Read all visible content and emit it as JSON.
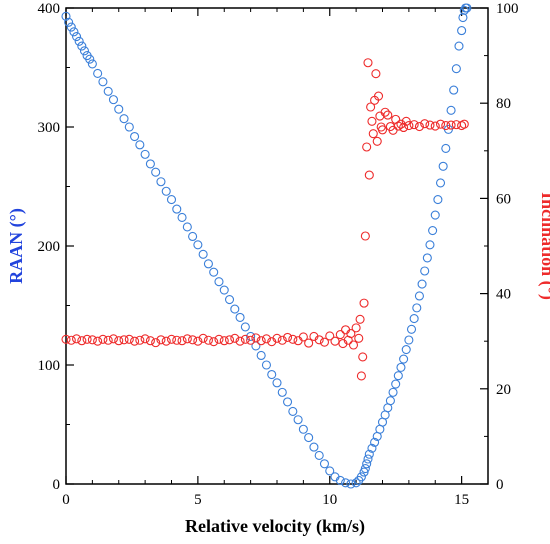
{
  "chart_data": {
    "type": "scatter",
    "title": "",
    "xlabel": "Relative velocity (km/s)",
    "ylabel_left": "RAAN (°)",
    "ylabel_right": "Inclination (°)",
    "xlim": [
      0,
      16
    ],
    "ylim_left": [
      0,
      400
    ],
    "ylim_right": [
      0,
      100
    ],
    "x_ticks": [
      "0",
      "5",
      "10",
      "15"
    ],
    "y_left_ticks": [
      "0",
      "100",
      "200",
      "300",
      "400"
    ],
    "y_right_ticks": [
      "0",
      "20",
      "40",
      "60",
      "80",
      "100"
    ],
    "grid": false,
    "legend": "none",
    "colors": {
      "raan": "#3a7fd9",
      "inclination": "#ee2b2b"
    },
    "series": [
      {
        "axis": "left",
        "color": "#3a7fd9",
        "marker": "open-circle",
        "x": [
          0.0,
          0.1,
          0.2,
          0.3,
          0.4,
          0.5,
          0.6,
          0.7,
          0.8,
          0.9,
          1.0,
          1.2,
          1.4,
          1.6,
          1.8,
          2.0,
          2.2,
          2.4,
          2.6,
          2.8,
          3.0,
          3.2,
          3.4,
          3.6,
          3.8,
          4.0,
          4.2,
          4.4,
          4.6,
          4.8,
          5.0,
          5.2,
          5.4,
          5.6,
          5.8,
          6.0,
          6.2,
          6.4,
          6.6,
          6.8,
          7.0,
          7.2,
          7.4,
          7.6,
          7.8,
          8.0,
          8.2,
          8.4,
          8.6,
          8.8,
          9.0,
          9.2,
          9.4,
          9.6,
          9.8,
          10.0,
          10.2,
          10.4,
          10.6,
          10.8,
          11.0,
          11.1,
          11.2,
          11.3,
          11.35,
          11.4,
          11.45,
          11.5,
          11.6,
          11.7,
          11.8,
          11.9,
          12.0,
          12.1,
          12.2,
          12.3,
          12.4,
          12.5,
          12.6,
          12.7,
          12.8,
          12.9,
          13.0,
          13.1,
          13.2,
          13.3,
          13.4,
          13.5,
          13.6,
          13.7,
          13.8,
          13.9,
          14.0,
          14.1,
          14.2,
          14.3,
          14.4,
          14.5,
          14.6,
          14.7,
          14.8,
          14.9,
          15.0,
          15.05,
          15.1,
          15.15,
          15.2
        ],
        "y": [
          393,
          388,
          384,
          380,
          376,
          372,
          368,
          364,
          360,
          357,
          353,
          345,
          338,
          330,
          323,
          315,
          307,
          300,
          292,
          285,
          277,
          269,
          262,
          254,
          246,
          239,
          231,
          224,
          216,
          208,
          201,
          193,
          185,
          178,
          170,
          163,
          155,
          147,
          140,
          132,
          124,
          116,
          108,
          100,
          92,
          85,
          77,
          69,
          61,
          54,
          46,
          39,
          31,
          24,
          17,
          11,
          6,
          3,
          1,
          0,
          1,
          3,
          6,
          10,
          13,
          17,
          21,
          25,
          30,
          35,
          40,
          46,
          52,
          58,
          64,
          70,
          77,
          84,
          91,
          98,
          105,
          113,
          121,
          130,
          139,
          148,
          158,
          168,
          179,
          190,
          201,
          213,
          226,
          239,
          253,
          267,
          282,
          298,
          314,
          331,
          349,
          368,
          381,
          392,
          398,
          400,
          400
        ],
        "name": ""
      },
      {
        "axis": "right",
        "color": "#ee2b2b",
        "marker": "open-circle",
        "x": [
          0.0,
          0.2,
          0.4,
          0.6,
          0.8,
          1.0,
          1.2,
          1.4,
          1.6,
          1.8,
          2.0,
          2.2,
          2.4,
          2.6,
          2.8,
          3.0,
          3.2,
          3.4,
          3.6,
          3.8,
          4.0,
          4.2,
          4.4,
          4.6,
          4.8,
          5.0,
          5.2,
          5.4,
          5.6,
          5.8,
          6.0,
          6.2,
          6.4,
          6.6,
          6.8,
          7.0,
          7.2,
          7.4,
          7.6,
          7.8,
          8.0,
          8.2,
          8.4,
          8.6,
          8.8,
          9.0,
          9.2,
          9.4,
          9.6,
          9.8,
          10.0,
          10.2,
          10.4,
          10.5,
          10.6,
          10.7,
          10.8,
          10.9,
          11.0,
          11.1,
          11.15,
          11.2,
          11.25,
          11.3,
          11.35,
          11.4,
          11.45,
          11.5,
          11.55,
          11.6,
          11.65,
          11.7,
          11.75,
          11.8,
          11.85,
          11.9,
          11.95,
          12.0,
          12.1,
          12.2,
          12.3,
          12.4,
          12.5,
          12.6,
          12.7,
          12.8,
          12.9,
          13.0,
          13.2,
          13.4,
          13.6,
          13.8,
          14.0,
          14.2,
          14.4,
          14.6,
          14.8,
          15.0,
          15.1
        ],
        "y": [
          30.4,
          30.2,
          30.5,
          30.1,
          30.4,
          30.3,
          30.0,
          30.4,
          30.2,
          30.5,
          30.1,
          30.3,
          30.4,
          30.0,
          30.2,
          30.5,
          30.1,
          29.7,
          30.3,
          30.0,
          30.4,
          30.2,
          30.1,
          30.5,
          30.3,
          30.0,
          30.6,
          30.2,
          29.9,
          30.4,
          30.1,
          30.3,
          30.6,
          30.0,
          30.4,
          30.2,
          30.7,
          30.1,
          30.5,
          29.9,
          30.6,
          30.2,
          30.8,
          30.4,
          30.1,
          30.9,
          29.6,
          31.0,
          30.3,
          29.8,
          31.1,
          30.0,
          31.4,
          29.5,
          32.4,
          30.2,
          31.6,
          29.2,
          32.8,
          30.6,
          34.6,
          22.7,
          26.7,
          38.0,
          52.1,
          70.8,
          88.5,
          64.9,
          79.2,
          76.2,
          73.6,
          80.6,
          86.2,
          72.0,
          81.5,
          77.3,
          75.0,
          74.4,
          78.1,
          77.5,
          75.1,
          74.3,
          76.6,
          75.2,
          75.6,
          74.9,
          76.2,
          75.3,
          75.5,
          75.1,
          75.7,
          75.4,
          75.2,
          75.6,
          75.3,
          75.4,
          75.5,
          75.3,
          75.6
        ],
        "name": ""
      }
    ]
  }
}
